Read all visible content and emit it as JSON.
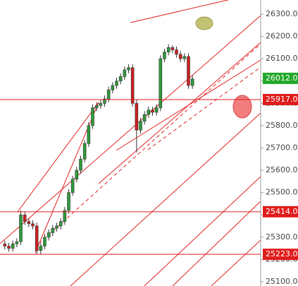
{
  "chart_data": {
    "type": "candlestick",
    "series": [
      {
        "up_color": "#2e9a3a",
        "down_color": "#cc2020",
        "open": [
          25270,
          25260,
          25250,
          25270,
          25280,
          25400,
          25370,
          25360,
          25350,
          25240,
          25260,
          25300,
          25320,
          25340,
          25350,
          25370,
          25420,
          25500,
          25560,
          25600,
          25650,
          25720,
          25800,
          25880,
          25890,
          25900,
          25920,
          25960,
          25980,
          26000,
          26020,
          26050,
          26060,
          25900,
          25780,
          25820,
          25850,
          25870,
          25860,
          25880,
          26100,
          26130,
          26150,
          26140,
          26120,
          26100,
          26110,
          25980
        ],
        "high": [
          25285,
          25275,
          25285,
          25295,
          25420,
          25415,
          25385,
          25375,
          25365,
          25275,
          25315,
          25335,
          25355,
          25365,
          25385,
          25435,
          25515,
          25575,
          25615,
          25665,
          25735,
          25815,
          25895,
          25905,
          25915,
          25935,
          25975,
          25995,
          26015,
          26035,
          26065,
          26075,
          26075,
          25915,
          25835,
          25865,
          25885,
          25885,
          25895,
          26115,
          26145,
          26165,
          26160,
          26155,
          26135,
          26125,
          26125,
          26025
        ],
        "low": [
          25245,
          25235,
          25235,
          25255,
          25265,
          25355,
          25345,
          25335,
          25225,
          25225,
          25245,
          25285,
          25305,
          25325,
          25335,
          25355,
          25405,
          25485,
          25545,
          25585,
          25635,
          25705,
          25785,
          25865,
          25875,
          25885,
          25905,
          25945,
          25965,
          25985,
          26005,
          26035,
          25885,
          25680,
          25765,
          25805,
          25835,
          25845,
          25845,
          25865,
          26085,
          26115,
          26125,
          26105,
          26085,
          26085,
          25965,
          25965
        ],
        "close": [
          25260,
          25250,
          25270,
          25280,
          25400,
          25370,
          25360,
          25350,
          25240,
          25260,
          25300,
          25320,
          25340,
          25350,
          25370,
          25420,
          25500,
          25560,
          25600,
          25650,
          25720,
          25800,
          25880,
          25890,
          25900,
          25920,
          25960,
          25980,
          26000,
          26020,
          26050,
          26060,
          25900,
          25780,
          25820,
          25850,
          25870,
          25860,
          25880,
          26100,
          26130,
          26150,
          26140,
          26120,
          26100,
          26110,
          25980,
          26010
        ]
      }
    ],
    "ylim": [
      25100,
      26300
    ],
    "yticks": [
      {
        "value": 26300,
        "label": "26300.0"
      },
      {
        "value": 26200,
        "label": "26200.0"
      },
      {
        "value": 26100,
        "label": "26100.0"
      },
      {
        "value": 26000,
        "label": "26000.0"
      },
      {
        "value": 25900,
        "label": "25900.0"
      },
      {
        "value": 25800,
        "label": "25800.0"
      },
      {
        "value": 25700,
        "label": "25700.0"
      },
      {
        "value": 25600,
        "label": "25600.0"
      },
      {
        "value": 25500,
        "label": "25500.0"
      },
      {
        "value": 25400,
        "label": "25400.0"
      },
      {
        "value": 25300,
        "label": "25300.0"
      },
      {
        "value": 25200,
        "label": "25200.0"
      },
      {
        "value": 25100,
        "label": "25100.0"
      }
    ],
    "price_labels": [
      {
        "value": 26012,
        "label": "26012.0",
        "color": "#22a82a",
        "line": false
      },
      {
        "value": 25917,
        "label": "25917.0",
        "color": "#e01c1c",
        "line": true
      },
      {
        "value": 25414,
        "label": "25414.0",
        "color": "#e01c1c",
        "line": true
      },
      {
        "value": 25223,
        "label": "25223.0",
        "color": "#e01c1c",
        "line": true
      }
    ]
  }
}
